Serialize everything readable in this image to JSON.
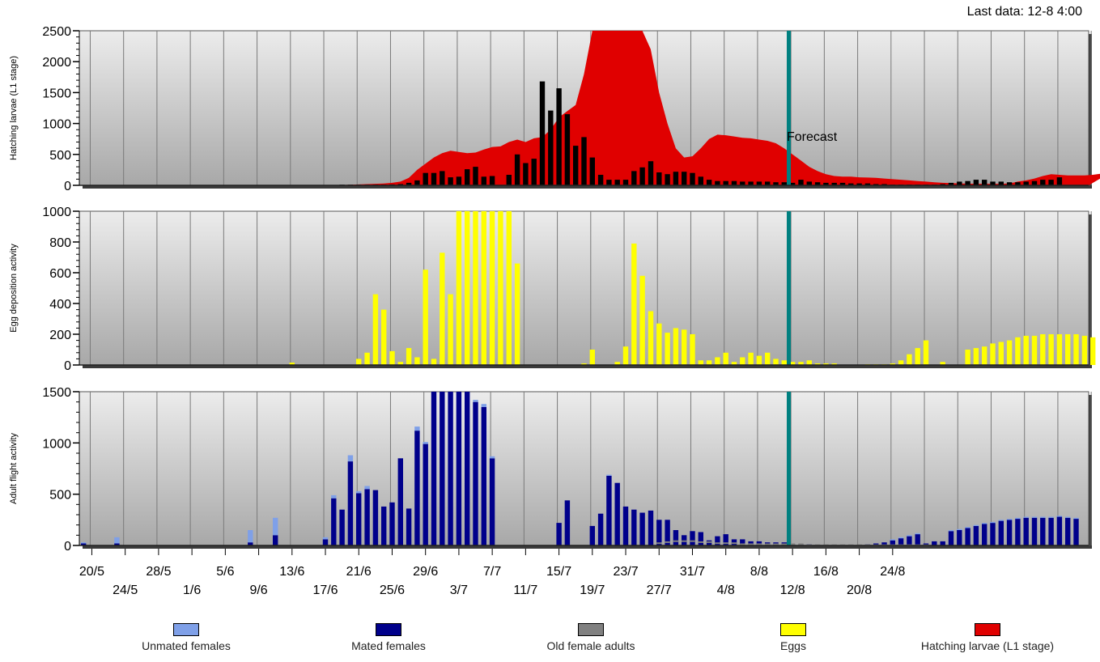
{
  "header": {
    "last_data": "Last data: 12-8 4:00"
  },
  "forecast_label": "Forecast",
  "colors": {
    "unmated": "#7fa0e8",
    "mated": "#00008b",
    "old": "#808080",
    "eggs": "#ffff00",
    "larvae_area": "#e00000",
    "larvae_bars": "#000000",
    "forecast_line": "#008080"
  },
  "legend": [
    {
      "label": "Unmated females",
      "color": "#7fa0e8"
    },
    {
      "label": "Mated females",
      "color": "#00008b"
    },
    {
      "label": "Old female adults",
      "color": "#808080"
    },
    {
      "label": "Eggs",
      "color": "#ffff00"
    },
    {
      "label": "Hatching larvae (L1 stage)",
      "color": "#e00000"
    }
  ],
  "chart_data": {
    "type": "bar",
    "start_date": "19/5",
    "forecast_date": "12/8",
    "x_ticks_row1": [
      "20/5",
      "28/5",
      "5/6",
      "13/6",
      "21/6",
      "29/6",
      "7/7",
      "15/7",
      "23/7",
      "31/7",
      "8/8",
      "16/8",
      "24/8"
    ],
    "x_ticks_row2": [
      "24/5",
      "1/6",
      "9/6",
      "17/6",
      "25/6",
      "3/7",
      "11/7",
      "19/7",
      "27/7",
      "4/8",
      "12/8",
      "20/8"
    ],
    "panels": [
      {
        "ylabel": "Hatching larvae (L1 stage)",
        "ylim": [
          0,
          2500
        ],
        "yticks": [
          0,
          500,
          1000,
          1500,
          2000,
          2500
        ],
        "area": [
          0,
          0,
          0,
          0,
          0,
          0,
          0,
          0,
          0,
          0,
          0,
          0,
          0,
          0,
          0,
          0,
          0,
          0,
          0,
          0,
          0,
          0,
          0,
          0,
          0,
          0,
          0,
          0,
          0,
          0,
          0,
          5,
          10,
          15,
          20,
          25,
          30,
          40,
          60,
          120,
          250,
          350,
          450,
          520,
          560,
          540,
          520,
          530,
          580,
          620,
          630,
          700,
          740,
          700,
          760,
          780,
          900,
          1100,
          1200,
          1300,
          1800,
          2500,
          2600,
          2600,
          2600,
          2600,
          2600,
          2500,
          2200,
          1500,
          1000,
          600,
          450,
          470,
          600,
          750,
          820,
          810,
          790,
          770,
          760,
          740,
          720,
          680,
          600,
          500,
          400,
          300,
          230,
          180,
          150,
          140,
          140,
          130,
          125,
          120,
          110,
          100,
          90,
          80,
          70,
          60,
          50,
          40,
          35,
          30,
          28,
          25,
          25,
          25,
          25,
          30,
          60,
          80,
          110,
          150,
          180,
          170,
          160,
          160,
          160,
          170,
          190,
          200,
          280
        ],
        "bars": [
          0,
          0,
          0,
          0,
          0,
          0,
          0,
          0,
          0,
          0,
          0,
          0,
          0,
          0,
          0,
          0,
          0,
          0,
          0,
          0,
          0,
          0,
          0,
          0,
          0,
          0,
          0,
          0,
          0,
          0,
          0,
          10,
          10,
          10,
          10,
          10,
          10,
          15,
          20,
          40,
          80,
          200,
          200,
          230,
          130,
          140,
          260,
          300,
          140,
          150,
          0,
          170,
          500,
          360,
          430,
          1680,
          1210,
          1570,
          1150,
          640,
          780,
          450,
          170,
          90,
          90,
          90,
          230,
          290,
          390,
          210,
          180,
          220,
          220,
          200,
          140,
          90,
          70,
          70,
          70,
          60,
          60,
          60,
          60,
          50,
          50,
          40,
          90,
          60,
          50,
          40,
          40,
          40,
          30,
          30,
          30,
          20,
          20,
          10,
          10,
          10,
          10,
          10,
          10,
          20,
          40,
          60,
          70,
          90,
          90,
          60,
          60,
          50,
          50,
          60,
          70,
          90,
          90,
          130
        ]
      },
      {
        "ylabel": "Egg deposition activity",
        "ylim": [
          0,
          1000
        ],
        "yticks": [
          0,
          200,
          400,
          600,
          800,
          1000
        ],
        "bars": [
          0,
          0,
          0,
          0,
          0,
          0,
          0,
          0,
          0,
          0,
          0,
          0,
          0,
          0,
          0,
          0,
          0,
          0,
          0,
          0,
          0,
          0,
          0,
          0,
          0,
          15,
          0,
          0,
          0,
          0,
          0,
          0,
          0,
          40,
          80,
          460,
          360,
          90,
          20,
          110,
          50,
          620,
          40,
          730,
          460,
          1000,
          1000,
          1000,
          1000,
          1000,
          1000,
          1000,
          660,
          0,
          0,
          0,
          0,
          0,
          0,
          0,
          10,
          100,
          0,
          0,
          20,
          120,
          790,
          580,
          350,
          270,
          210,
          240,
          230,
          200,
          30,
          30,
          50,
          80,
          20,
          50,
          80,
          60,
          80,
          40,
          30,
          20,
          20,
          30,
          10,
          10,
          10,
          0,
          0,
          0,
          5,
          5,
          5,
          10,
          30,
          70,
          110,
          160,
          0,
          20,
          0,
          0,
          100,
          110,
          120,
          140,
          150,
          160,
          180,
          190,
          190,
          200,
          200,
          200,
          200,
          200,
          190,
          180
        ]
      },
      {
        "ylabel": "Adult flight activity",
        "ylim": [
          0,
          1500
        ],
        "yticks": [
          0,
          500,
          1000,
          1500
        ],
        "mated": [
          20,
          0,
          0,
          0,
          20,
          0,
          0,
          0,
          0,
          0,
          0,
          0,
          0,
          0,
          0,
          0,
          0,
          0,
          0,
          0,
          30,
          0,
          0,
          100,
          0,
          0,
          0,
          0,
          0,
          60,
          460,
          350,
          820,
          510,
          550,
          540,
          380,
          420,
          850,
          360,
          1120,
          990,
          1500,
          1500,
          1500,
          1500,
          1500,
          1400,
          1350,
          850,
          0,
          0,
          0,
          0,
          0,
          0,
          0,
          220,
          440,
          0,
          0,
          190,
          310,
          680,
          610,
          380,
          350,
          320,
          340,
          250,
          250,
          150,
          100,
          140,
          130,
          50,
          90,
          110,
          60,
          60,
          40,
          40,
          30,
          30,
          30,
          10,
          10,
          10,
          0,
          0,
          0,
          0,
          5,
          5,
          10,
          20,
          30,
          50,
          70,
          90,
          110,
          20,
          40,
          40,
          140,
          150,
          170,
          190,
          210,
          220,
          240,
          250,
          260,
          270,
          270,
          270,
          270,
          280,
          270,
          260
        ],
        "unmated": [
          10,
          0,
          0,
          0,
          60,
          0,
          0,
          0,
          0,
          0,
          0,
          0,
          0,
          0,
          0,
          0,
          0,
          0,
          0,
          0,
          120,
          0,
          0,
          170,
          0,
          0,
          0,
          0,
          0,
          20,
          30,
          0,
          60,
          20,
          30,
          0,
          0,
          0,
          0,
          0,
          40,
          20,
          0,
          0,
          0,
          0,
          0,
          20,
          30,
          20,
          0,
          0,
          0,
          0,
          0,
          0,
          0,
          0,
          0,
          0,
          0,
          0,
          0,
          10,
          0,
          0,
          0,
          0,
          0,
          0,
          0,
          0,
          0,
          0,
          0,
          0,
          0,
          0,
          0,
          0,
          0,
          0,
          0,
          0,
          0,
          0,
          0,
          0,
          0,
          0,
          0,
          0,
          0,
          0,
          0,
          0,
          0,
          10,
          10,
          10,
          10,
          0,
          0,
          0,
          10,
          10,
          10,
          10,
          10,
          10,
          10,
          10,
          10,
          10,
          10,
          10,
          10,
          10,
          10,
          10
        ],
        "old": [
          0,
          0,
          0,
          0,
          0,
          0,
          0,
          0,
          0,
          0,
          0,
          0,
          0,
          0,
          0,
          0,
          0,
          0,
          0,
          0,
          0,
          0,
          0,
          0,
          0,
          0,
          0,
          0,
          0,
          0,
          0,
          0,
          0,
          0,
          0,
          0,
          0,
          0,
          0,
          0,
          0,
          0,
          0,
          0,
          0,
          0,
          0,
          0,
          0,
          0,
          0,
          0,
          0,
          0,
          0,
          0,
          0,
          0,
          0,
          0,
          0,
          0,
          0,
          0,
          0,
          0,
          0,
          0,
          0,
          30,
          40,
          50,
          50,
          50,
          40,
          40,
          30,
          30,
          30,
          20,
          20,
          20,
          20,
          20,
          20,
          20,
          20,
          10,
          10,
          10,
          10,
          10,
          10,
          10,
          10,
          10,
          10,
          10,
          10,
          10,
          10,
          10,
          0,
          0,
          0,
          0,
          0,
          0,
          0,
          0,
          0,
          0,
          0,
          0,
          0,
          0,
          0,
          0,
          0,
          0,
          0,
          0,
          0,
          0,
          0
        ]
      }
    ]
  }
}
